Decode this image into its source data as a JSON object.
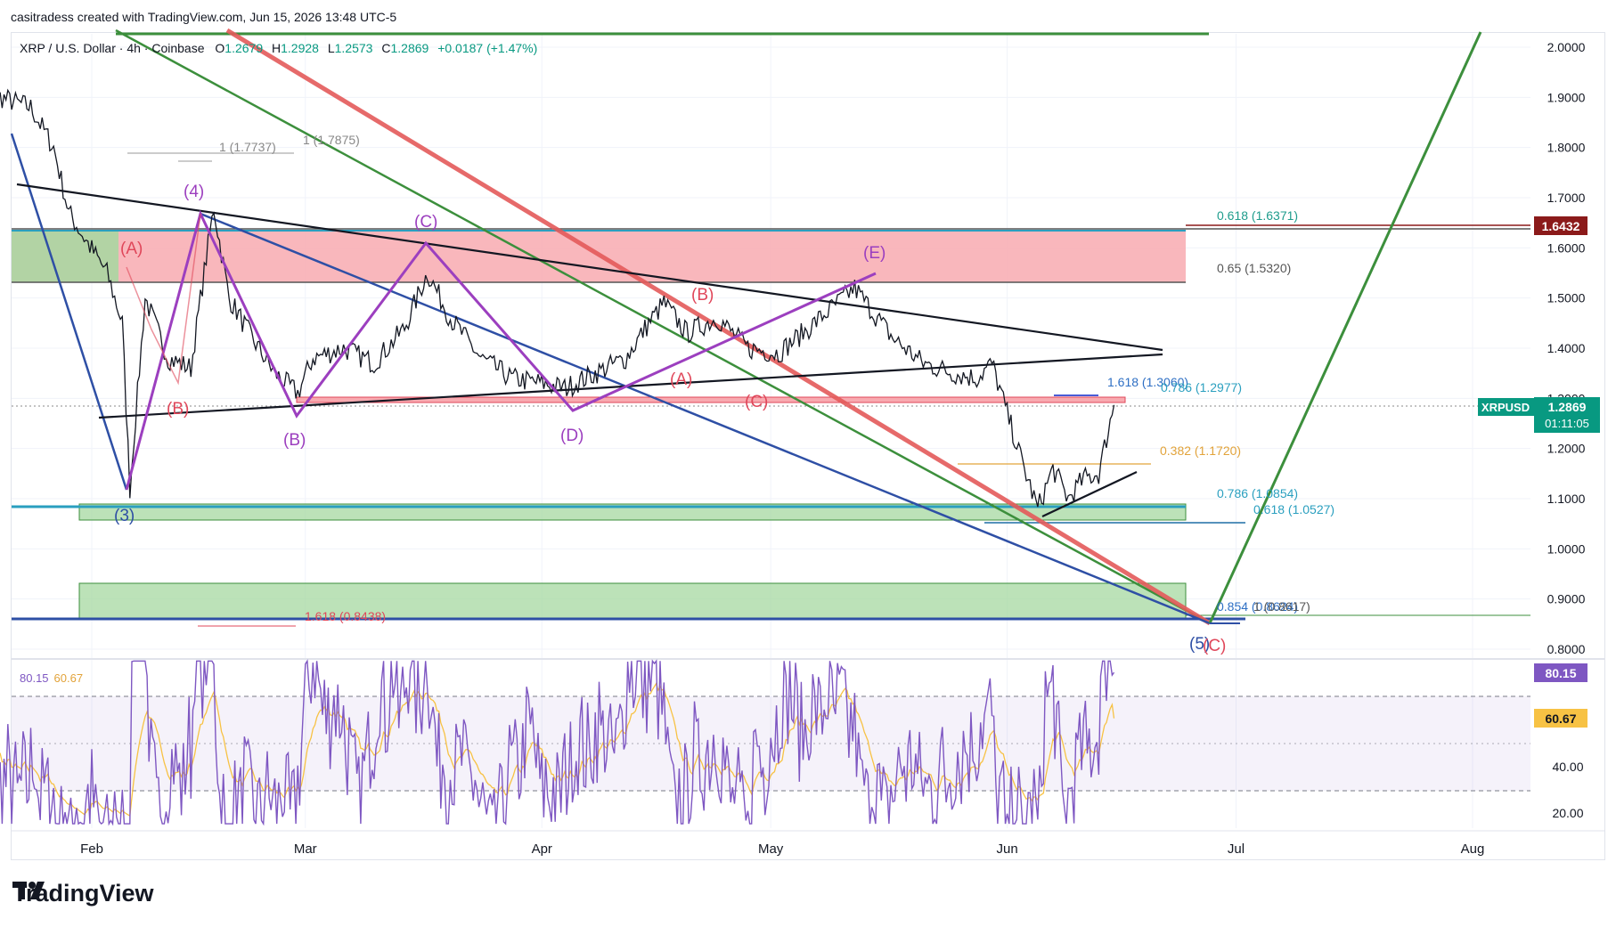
{
  "header": {
    "credit": "casitradess created with TradingView.com, Jun 15, 2026 13:48 UTC-5",
    "symbol_line": "XRP / U.S. Dollar · 4h · Coinbase",
    "o_label": "O",
    "o_value": "1.2679",
    "h_label": "H",
    "h_value": "1.2928",
    "l_label": "L",
    "l_value": "1.2573",
    "c_label": "C",
    "c_value": "1.2869",
    "change": "+0.0187 (+1.47%)"
  },
  "colors": {
    "up": "#089981",
    "down": "#f23645",
    "price_line": "#131722",
    "rsi": "#7e57c2",
    "rsi_ma": "#f7c244",
    "wave_purple": "#9c3fbf",
    "wave_red": "#e0475a",
    "wave_blue": "#2e4fa5",
    "trend_green": "#3c8f3c",
    "trend_red": "#e35a5a",
    "fib_teal": "#2a9fbf",
    "fib_gold": "#e2a33a",
    "zone_red": "#f8aab0",
    "zone_green": "#a6d8a0"
  },
  "chart_data": {
    "type": "line",
    "symbol": "XRPUSD",
    "timeframe": "4h",
    "x_axis_labels": [
      "Feb",
      "Mar",
      "Apr",
      "May",
      "Jun",
      "Jul",
      "Aug"
    ],
    "price_axis": [
      2.0,
      1.9,
      1.8,
      1.7,
      1.6,
      1.5,
      1.4,
      1.3,
      1.2,
      1.1,
      1.0,
      0.9,
      0.8
    ],
    "price_axis_labels": [
      "2.0000",
      "1.9000",
      "1.8000",
      "1.7000",
      "1.6000",
      "1.5000",
      "1.4000",
      "1.3000",
      "1.2000",
      "1.1000",
      "1.0000",
      "0.9000",
      "0.8000"
    ],
    "ylim": [
      0.78,
      2.03
    ],
    "price_points": [
      [
        "2026-01-16",
        1.95
      ],
      [
        "2026-01-20",
        1.9
      ],
      [
        "2026-01-24",
        1.88
      ],
      [
        "2026-01-27",
        1.8
      ],
      [
        "2026-01-29",
        1.67
      ],
      [
        "2026-01-31",
        1.62
      ],
      [
        "2026-02-03",
        1.55
      ],
      [
        "2026-02-05",
        1.45
      ],
      [
        "2026-02-06",
        1.12
      ],
      [
        "2026-02-08",
        1.5
      ],
      [
        "2026-02-11",
        1.38
      ],
      [
        "2026-02-14",
        1.36
      ],
      [
        "2026-02-16",
        1.58
      ],
      [
        "2026-02-17",
        1.68
      ],
      [
        "2026-02-19",
        1.5
      ],
      [
        "2026-02-22",
        1.42
      ],
      [
        "2026-02-25",
        1.35
      ],
      [
        "2026-02-28",
        1.31
      ],
      [
        "2026-03-02",
        1.38
      ],
      [
        "2026-03-06",
        1.4
      ],
      [
        "2026-03-10",
        1.37
      ],
      [
        "2026-03-14",
        1.44
      ],
      [
        "2026-03-17",
        1.55
      ],
      [
        "2026-03-20",
        1.46
      ],
      [
        "2026-03-24",
        1.38
      ],
      [
        "2026-03-28",
        1.34
      ],
      [
        "2026-04-01",
        1.33
      ],
      [
        "2026-04-04",
        1.32
      ],
      [
        "2026-04-08",
        1.35
      ],
      [
        "2026-04-12",
        1.38
      ],
      [
        "2026-04-15",
        1.45
      ],
      [
        "2026-04-17",
        1.49
      ],
      [
        "2026-04-20",
        1.43
      ],
      [
        "2026-04-24",
        1.46
      ],
      [
        "2026-04-28",
        1.4
      ],
      [
        "2026-05-02",
        1.39
      ],
      [
        "2026-05-06",
        1.44
      ],
      [
        "2026-05-09",
        1.48
      ],
      [
        "2026-05-12",
        1.52
      ],
      [
        "2026-05-14",
        1.48
      ],
      [
        "2026-05-17",
        1.42
      ],
      [
        "2026-05-21",
        1.37
      ],
      [
        "2026-05-25",
        1.35
      ],
      [
        "2026-05-28",
        1.34
      ],
      [
        "2026-05-30",
        1.37
      ],
      [
        "2026-06-01",
        1.27
      ],
      [
        "2026-06-03",
        1.17
      ],
      [
        "2026-06-05",
        1.08
      ],
      [
        "2026-06-07",
        1.16
      ],
      [
        "2026-06-09",
        1.1
      ],
      [
        "2026-06-11",
        1.14
      ],
      [
        "2026-06-13",
        1.15
      ],
      [
        "2026-06-14",
        1.22
      ],
      [
        "2026-06-15",
        1.2869
      ]
    ],
    "current_price": 1.2869,
    "current_price_label": "1.2869",
    "countdown": "01:11:05",
    "symbol_tag": "XRPUSD",
    "resistance_tag": "1.6432",
    "resistance_value": 1.6432,
    "fib_labels": [
      {
        "text": "0.618 (1.6371)",
        "price": 1.6371,
        "color": "#1e9c8c"
      },
      {
        "text": "0.65 (1.5320)",
        "price": 1.532,
        "color": "#555555"
      },
      {
        "text": "1.618 (1.3060)",
        "price": 1.306,
        "color": "#2e6fc4"
      },
      {
        "text": "0.786 (1.2977)",
        "price": 1.2977,
        "color": "#2a9fbf"
      },
      {
        "text": "0.382 (1.1720)",
        "price": 1.172,
        "color": "#e2a33a"
      },
      {
        "text": "0.786 (1.0854)",
        "price": 1.0854,
        "color": "#2a9fbf"
      },
      {
        "text": "0.618 (1.0527)",
        "price": 1.0527,
        "color": "#2a9fbf"
      },
      {
        "text": "0.854 (0.8624)",
        "price": 0.8624,
        "color": "#2e6fc4"
      },
      {
        "text": "1 (0.8617)",
        "price": 0.8617,
        "color": "#555555"
      },
      {
        "text": "1.618 (0.8438)",
        "price": 0.8438,
        "color": "#e0475a"
      },
      {
        "text": "1 (1.7737)",
        "price": 1.7737,
        "color": "#888888"
      },
      {
        "text": "1 (1.7875)",
        "price": 1.7875,
        "color": "#888888"
      }
    ],
    "wave_labels": [
      {
        "text": "(4)",
        "color": "#9c3fbf"
      },
      {
        "text": "(A)",
        "color": "#e0475a"
      },
      {
        "text": "(B)",
        "color": "#e0475a"
      },
      {
        "text": "(3)",
        "color": "#2e4fa5"
      },
      {
        "text": "(B)",
        "color": "#9c3fbf"
      },
      {
        "text": "(C)",
        "color": "#9c3fbf"
      },
      {
        "text": "(D)",
        "color": "#9c3fbf"
      },
      {
        "text": "(E)",
        "color": "#9c3fbf"
      },
      {
        "text": "(B)",
        "color": "#e0475a"
      },
      {
        "text": "(A)",
        "color": "#e0475a"
      },
      {
        "text": "(C)",
        "color": "#e0475a"
      },
      {
        "text": "(5)",
        "color": "#2e4fa5"
      },
      {
        "text": "(C)",
        "color": "#e0475a"
      }
    ],
    "rsi": {
      "value": 80.15,
      "value_label": "80.15",
      "ma": 60.67,
      "ma_label": "60.67",
      "axis_labels": [
        "40.00",
        "20.00"
      ],
      "band_upper": 70,
      "band_lower": 30
    }
  }
}
